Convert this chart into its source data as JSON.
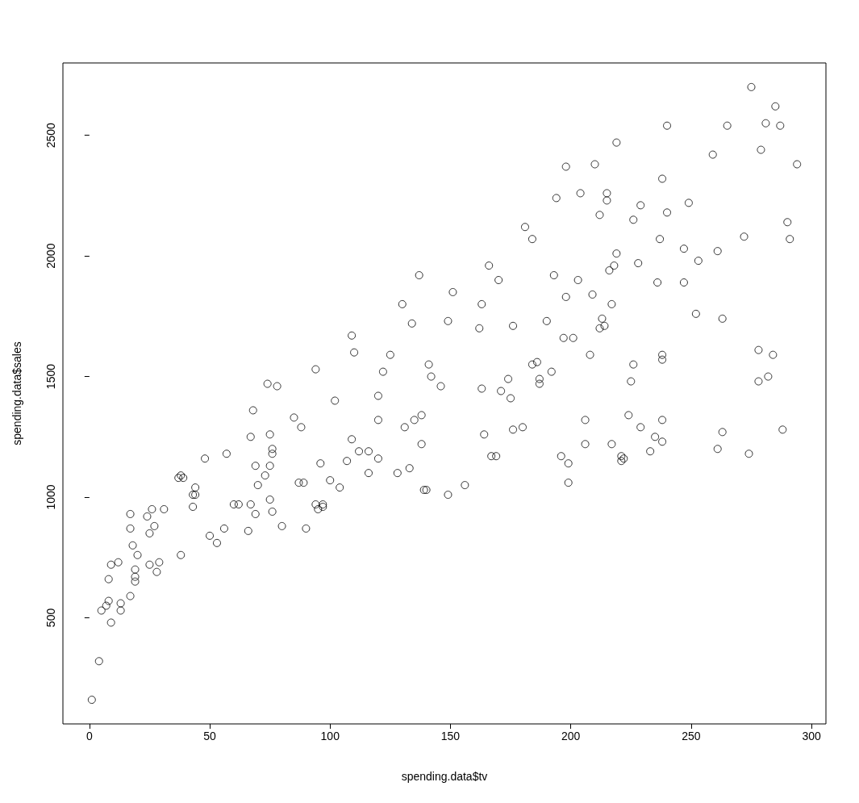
{
  "chart_data": {
    "type": "scatter",
    "xlabel": "spending.data$tv",
    "ylabel": "spending.data$sales",
    "xlim": [
      -11,
      306
    ],
    "ylim": [
      60,
      2800
    ],
    "xticks": [
      0,
      50,
      100,
      150,
      200,
      250,
      300
    ],
    "yticks": [
      500,
      1000,
      1500,
      2000,
      2500
    ],
    "grid": false,
    "marker": "circle",
    "series": [
      {
        "color": "#000000",
        "x": [
          1,
          4,
          5,
          7,
          8,
          8,
          9,
          9,
          12,
          13,
          13,
          17,
          17,
          18,
          17,
          19,
          19,
          19,
          20,
          24,
          26,
          25,
          27,
          25,
          28,
          29,
          31,
          37,
          38,
          39,
          38,
          43,
          43,
          44,
          44,
          48,
          50,
          53,
          56,
          57,
          60,
          62,
          66,
          67,
          67,
          68,
          69,
          69,
          70,
          73,
          74,
          75,
          75,
          75,
          76,
          76,
          76,
          78,
          80,
          85,
          87,
          88,
          89,
          90,
          94,
          94,
          95,
          96,
          97,
          97,
          100,
          102,
          104,
          107,
          109,
          109,
          110,
          112,
          116,
          116,
          120,
          120,
          120,
          122,
          125,
          128,
          130,
          131,
          133,
          134,
          135,
          137,
          138,
          138,
          139,
          140,
          141,
          142,
          146,
          149,
          149,
          151,
          156,
          162,
          163,
          163,
          164,
          166,
          167,
          169,
          170,
          171,
          174,
          175,
          176,
          176,
          180,
          181,
          184,
          184,
          186,
          187,
          187,
          190,
          192,
          193,
          194,
          196,
          197,
          198,
          198,
          199,
          199,
          201,
          203,
          204,
          206,
          206,
          208,
          209,
          210,
          212,
          212,
          213,
          214,
          215,
          215,
          216,
          217,
          217,
          218,
          219,
          219,
          221,
          221,
          222,
          224,
          225,
          226,
          226,
          228,
          229,
          229,
          233,
          235,
          236,
          237,
          238,
          238,
          238,
          238,
          238,
          240,
          240,
          247,
          247,
          249,
          252,
          253,
          261,
          259,
          261,
          263,
          263,
          265,
          272,
          274,
          275,
          278,
          278,
          279,
          281,
          282,
          284,
          285,
          287,
          288,
          290,
          291,
          294
        ],
        "values": [
          160,
          320,
          530,
          550,
          660,
          570,
          480,
          720,
          730,
          560,
          530,
          930,
          870,
          800,
          590,
          700,
          670,
          650,
          760,
          920,
          950,
          850,
          880,
          720,
          690,
          730,
          950,
          1080,
          1090,
          1080,
          760,
          960,
          1010,
          1040,
          1010,
          1160,
          840,
          810,
          870,
          1180,
          970,
          970,
          860,
          970,
          1250,
          1360,
          930,
          1130,
          1050,
          1090,
          1470,
          1260,
          1130,
          990,
          1200,
          1180,
          940,
          1460,
          880,
          1330,
          1060,
          1290,
          1060,
          870,
          1530,
          970,
          950,
          1140,
          960,
          970,
          1070,
          1400,
          1040,
          1150,
          1670,
          1240,
          1600,
          1190,
          1190,
          1100,
          1320,
          1420,
          1160,
          1520,
          1590,
          1100,
          1800,
          1290,
          1120,
          1720,
          1320,
          1920,
          1340,
          1220,
          1030,
          1030,
          1550,
          1500,
          1460,
          1730,
          1010,
          1850,
          1050,
          1700,
          1800,
          1450,
          1260,
          1960,
          1170,
          1170,
          1900,
          1440,
          1490,
          1410,
          1710,
          1280,
          1290,
          2120,
          2070,
          1550,
          1560,
          1470,
          1490,
          1730,
          1520,
          1920,
          2240,
          1170,
          1660,
          2370,
          1830,
          1140,
          1060,
          1660,
          1900,
          2260,
          1320,
          1220,
          1590,
          1840,
          2380,
          2170,
          1700,
          1740,
          1710,
          2260,
          2230,
          1940,
          1800,
          1220,
          1960,
          2470,
          2010,
          1170,
          1150,
          1160,
          1340,
          1480,
          1550,
          2150,
          1970,
          2210,
          1290,
          1190,
          1250,
          1890,
          2070,
          1570,
          1230,
          1320,
          2320,
          1590,
          2180,
          2540,
          2030,
          1890,
          2220,
          1760,
          1980,
          1200,
          2420,
          2020,
          1270,
          1740,
          2540,
          2080,
          1180,
          2700,
          1480,
          1610,
          2440,
          2550,
          1500,
          1590,
          2620,
          2540,
          1280,
          2140,
          2070,
          2380
        ]
      }
    ]
  }
}
